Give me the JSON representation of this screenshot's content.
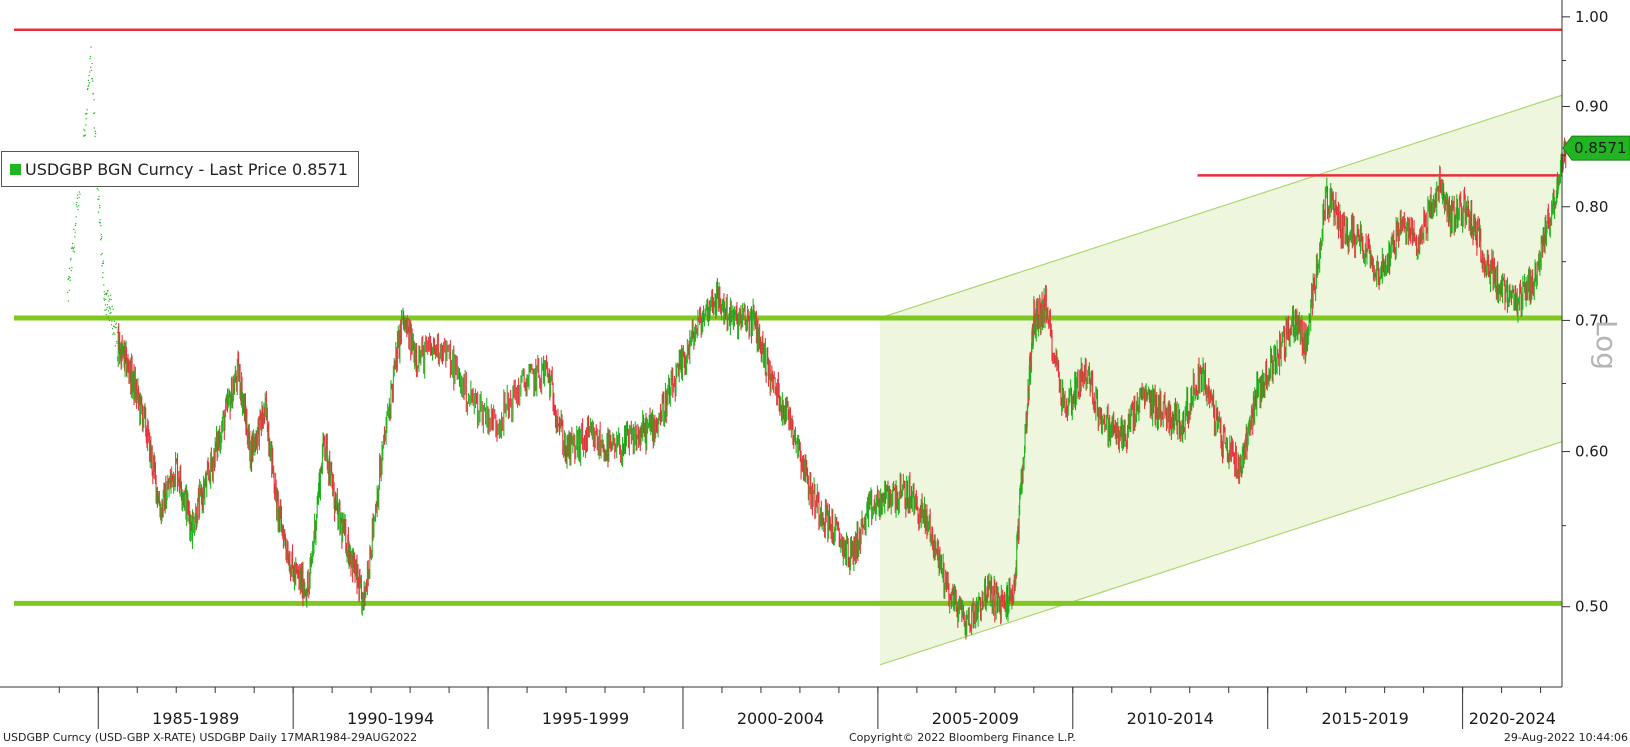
{
  "chart_data": {
    "type": "line",
    "title": "",
    "series": [
      {
        "name": "USDGBP BGN Curncy - Last Price 0.8571",
        "color": "#22b522",
        "x": [
          1984.2,
          1984.4,
          1984.6,
          1984.8,
          1985.0,
          1985.15,
          1985.3,
          1985.5,
          1985.8,
          1986.2,
          1986.6,
          1987.0,
          1987.4,
          1987.8,
          1988.2,
          1988.6,
          1988.9,
          1989.3,
          1989.6,
          1990.0,
          1990.4,
          1990.8,
          1991.1,
          1991.5,
          1991.8,
          1992.3,
          1992.8,
          1993.2,
          1993.8,
          1994.5,
          1995.2,
          1995.9,
          1996.5,
          1997.0,
          1997.6,
          1998.2,
          1998.8,
          1999.3,
          1999.8,
          2000.3,
          2000.8,
          2001.3,
          2001.8,
          2002.3,
          2002.8,
          2003.3,
          2003.8,
          2004.3,
          2004.8,
          2005.3,
          2005.8,
          2006.3,
          2006.8,
          2007.3,
          2007.8,
          2008.2,
          2008.5,
          2008.8,
          2009.0,
          2009.3,
          2009.8,
          2010.3,
          2010.8,
          2011.3,
          2011.8,
          2012.3,
          2012.8,
          2013.3,
          2013.8,
          2014.3,
          2014.7,
          2015.2,
          2015.7,
          2016.0,
          2016.5,
          2016.9,
          2017.4,
          2017.9,
          2018.4,
          2018.9,
          2019.4,
          2019.7,
          2020.1,
          2020.5,
          2020.9,
          2021.4,
          2021.9,
          2022.3,
          2022.66
        ],
        "y": [
          0.72,
          0.78,
          0.86,
          0.95,
          0.8,
          0.72,
          0.71,
          0.68,
          0.66,
          0.62,
          0.56,
          0.59,
          0.55,
          0.58,
          0.62,
          0.66,
          0.6,
          0.63,
          0.56,
          0.52,
          0.51,
          0.61,
          0.56,
          0.53,
          0.5,
          0.6,
          0.7,
          0.67,
          0.68,
          0.64,
          0.62,
          0.65,
          0.66,
          0.6,
          0.61,
          0.6,
          0.61,
          0.62,
          0.65,
          0.69,
          0.72,
          0.7,
          0.7,
          0.65,
          0.62,
          0.57,
          0.55,
          0.53,
          0.56,
          0.57,
          0.57,
          0.55,
          0.51,
          0.49,
          0.51,
          0.5,
          0.51,
          0.62,
          0.7,
          0.71,
          0.63,
          0.66,
          0.62,
          0.61,
          0.64,
          0.63,
          0.62,
          0.66,
          0.61,
          0.59,
          0.64,
          0.67,
          0.7,
          0.68,
          0.81,
          0.78,
          0.77,
          0.74,
          0.78,
          0.77,
          0.82,
          0.79,
          0.8,
          0.76,
          0.73,
          0.71,
          0.74,
          0.8,
          0.8571
        ]
      }
    ],
    "yscale": "log",
    "ylim": [
      0.455,
      1.02
    ],
    "xlim": [
      1983.3,
      2022.55
    ],
    "y_ticks": [
      "1.00",
      "0.90",
      "0.80",
      "0.70",
      "0.60",
      "0.50"
    ],
    "y_tick_values": [
      1.0,
      0.9,
      0.8,
      0.7,
      0.6,
      0.5
    ],
    "x_tick_labels": [
      "1985-1989",
      "1990-1994",
      "1995-1999",
      "2000-2004",
      "2005-2009",
      "2010-2014",
      "2015-2019",
      "2020-2024"
    ],
    "x_tick_starts": [
      1985,
      1990,
      1995,
      2000,
      2005,
      2010,
      2015,
      2020
    ],
    "scale_label": "Log",
    "last_price": "0.8571",
    "last_price_value": 0.8571,
    "legend": "USDGBP BGN Curncy - Last Price 0.8571",
    "legend_position": "top-left",
    "grid": false,
    "annotations": {
      "horizontal_lines": [
        {
          "color": "#e8303a",
          "y": 0.985,
          "x_start": 1983.3,
          "x_end": 2022.55
        },
        {
          "color": "#e8303a",
          "y": 0.83,
          "x_start": 2013.2,
          "x_end": 2022.55
        },
        {
          "color": "#7ec820",
          "y": 0.702,
          "x_start": 1983.3,
          "x_end": 2022.55
        },
        {
          "color": "#7ec820",
          "y": 0.502,
          "x_start": 1983.3,
          "x_end": 2022.55
        }
      ],
      "trend_channel": {
        "fill": "#eef7dd",
        "line_color": "#a9d86e",
        "x_start": 2005.05,
        "x_end": 2022.55,
        "upper_start": 0.702,
        "upper_end": 0.912,
        "lower_start": 0.467,
        "lower_end": 0.607
      }
    },
    "colors": {
      "up_bar": "#22b522",
      "down_bar": "#e8303a",
      "last_price_tag": "#22b522"
    }
  },
  "footer": {
    "left": "USDGBP Curncy (USD-GBP X-RATE) USDGBP  Daily 17MAR1984-29AUG2022",
    "center": "Copyright© 2022 Bloomberg Finance L.P.",
    "right": "29-Aug-2022 10:44:06"
  }
}
